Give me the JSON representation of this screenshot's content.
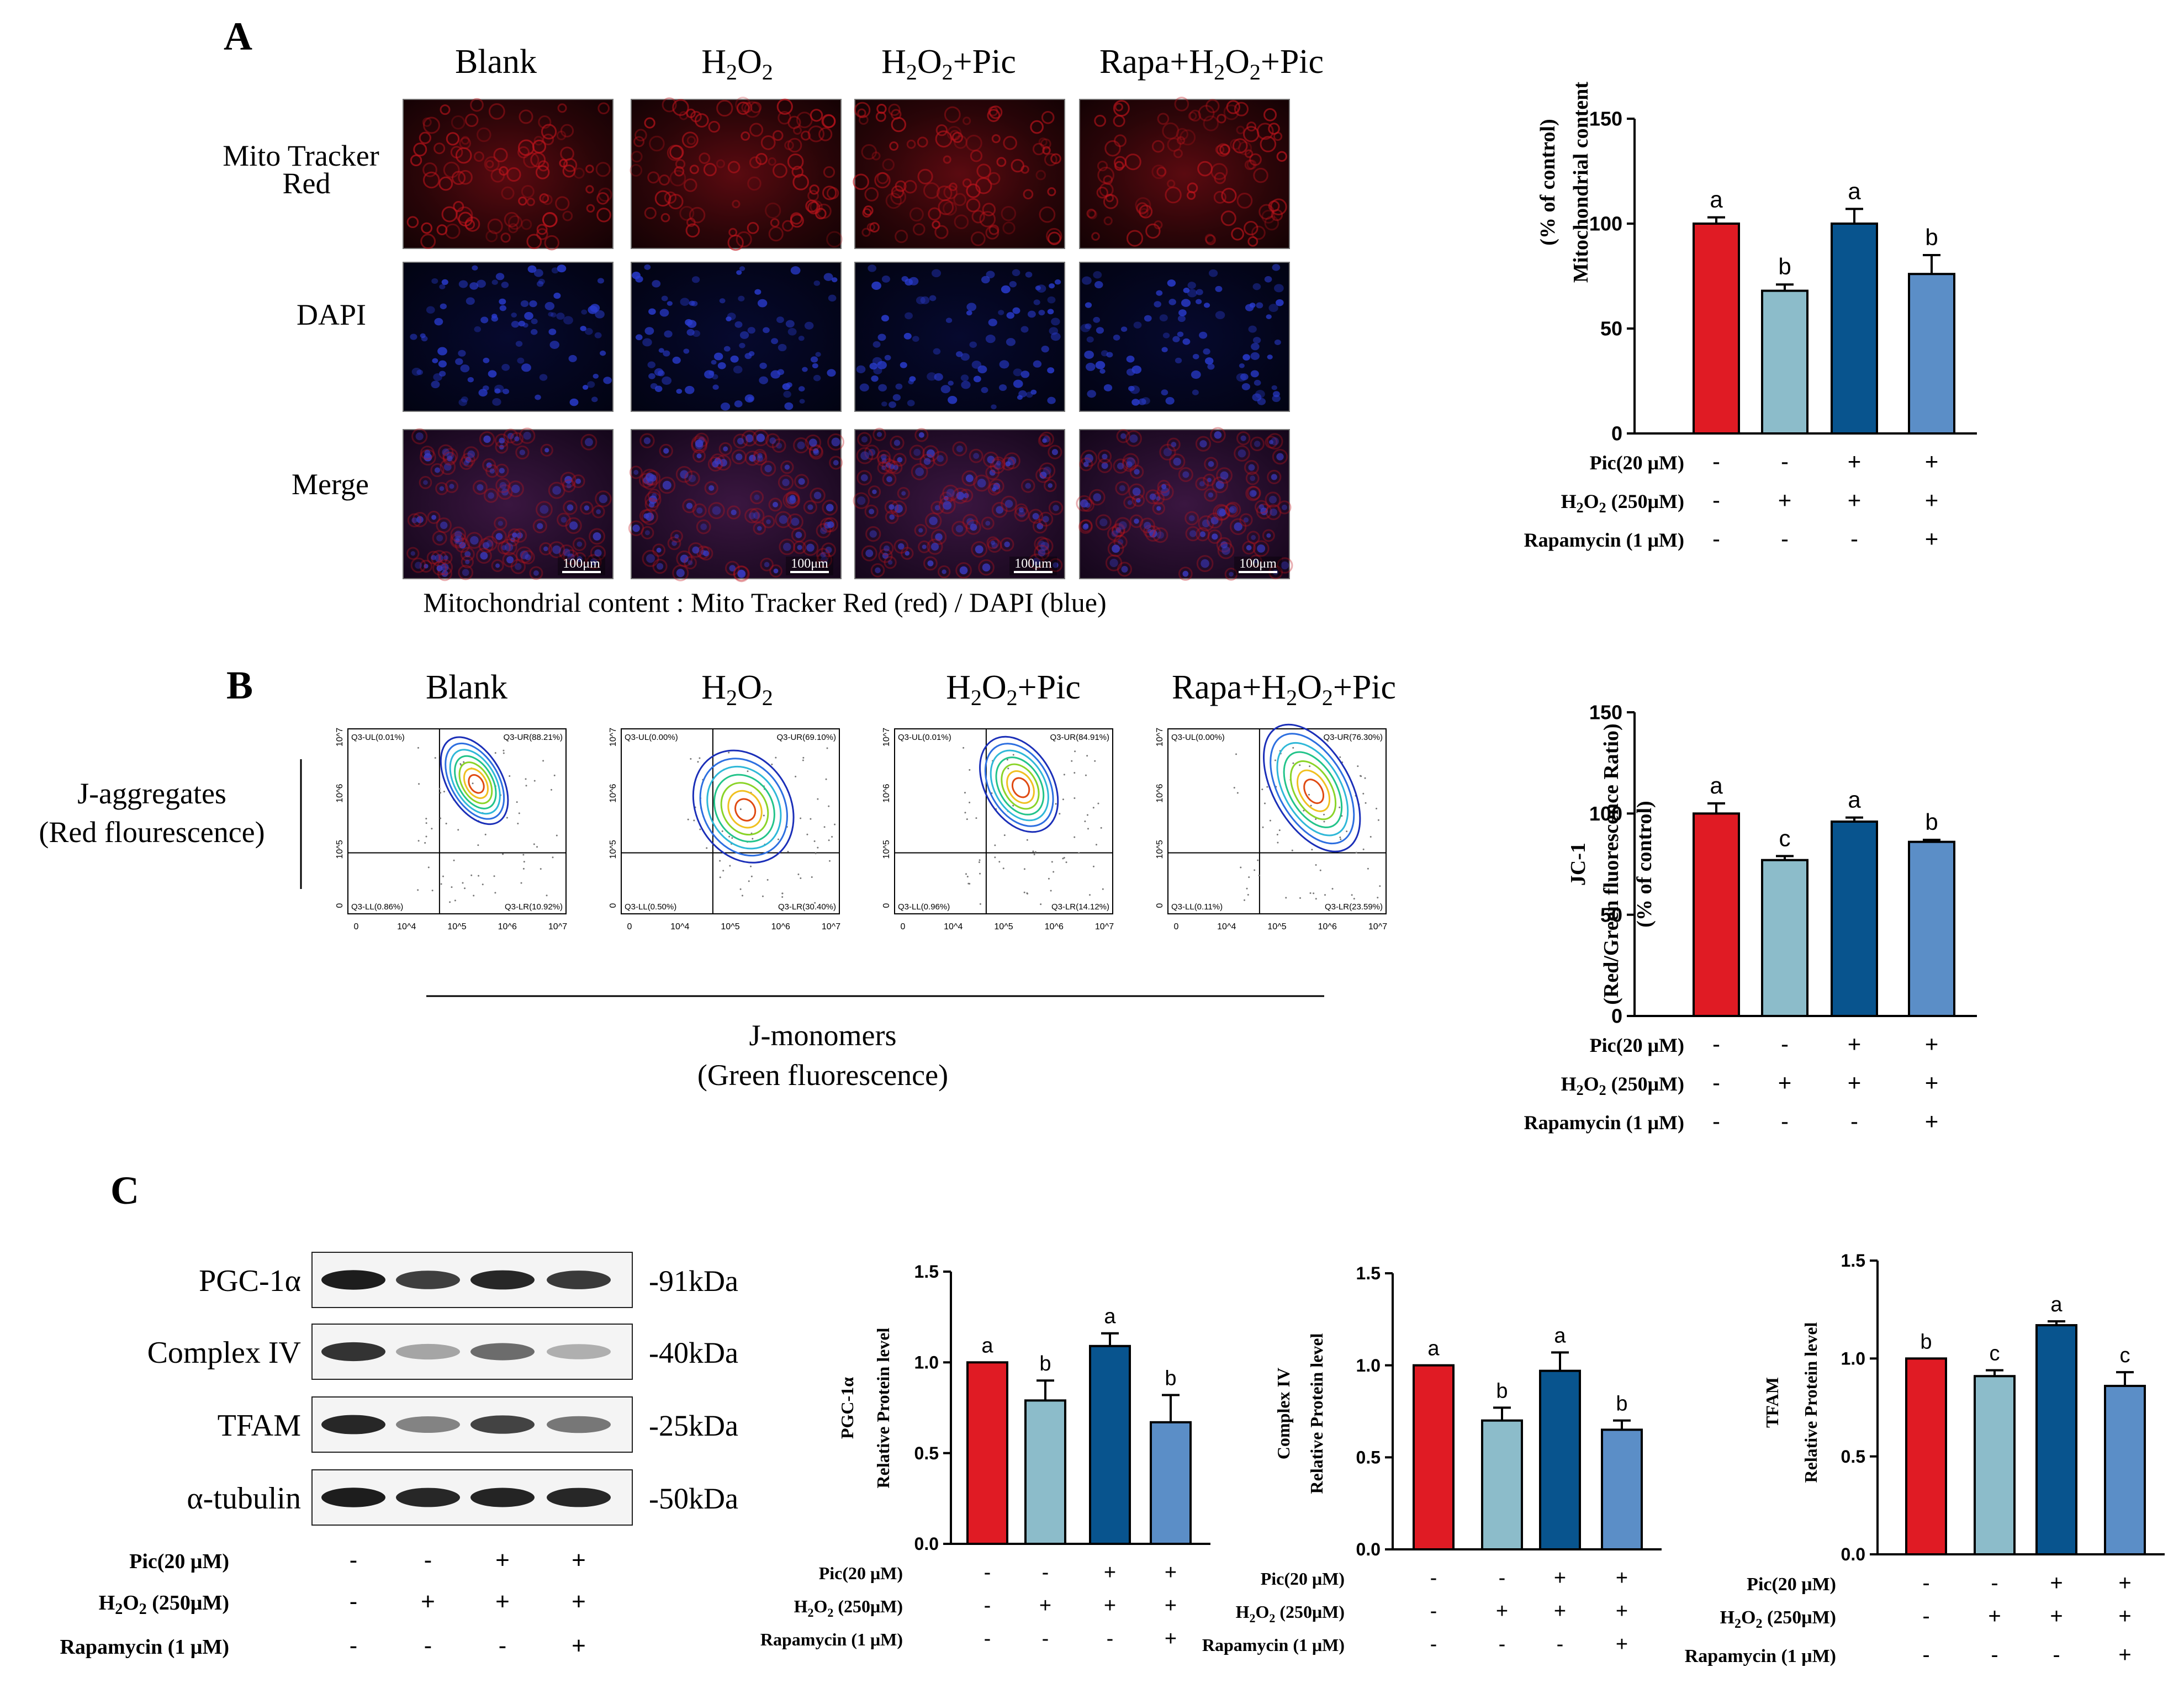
{
  "panelA": {
    "letter": "A",
    "columns": [
      "Blank",
      "H2O2",
      "H2O2+Pic",
      "Rapa+H2O2+Pic"
    ],
    "rows": [
      {
        "label": "Mito Tracker Red",
        "lines": [
          "Mito Tracker",
          "Red"
        ]
      },
      {
        "label": "DAPI",
        "lines": [
          "DAPI"
        ]
      },
      {
        "label": "Merge",
        "lines": [
          "Merge"
        ]
      }
    ],
    "scalebar": "100μm",
    "caption": "Mitochondrial content : Mito Tracker Red (red) / DAPI (blue)"
  },
  "panelB": {
    "letter": "B",
    "columns": [
      "Blank",
      "H2O2",
      "H2O2+Pic",
      "Rapa+H2O2+Pic"
    ],
    "ylabel_lines": [
      "J-aggregates",
      "(Red flourescence)"
    ],
    "xlabel_lines": [
      "J-monomers",
      "(Green fluorescence)"
    ],
    "flow_plots": [
      {
        "ul": "Q3-UL(0.01%)",
        "ur": "Q3-UR(88.21%)",
        "ll": "Q3-LL(0.86%)",
        "lr": "Q3-LR(10.92%)"
      },
      {
        "ul": "Q3-UL(0.00%)",
        "ur": "Q3-UR(69.10%)",
        "ll": "Q3-LL(0.50%)",
        "lr": "Q3-LR(30.40%)"
      },
      {
        "ul": "Q3-UL(0.01%)",
        "ur": "Q3-UR(84.91%)",
        "ll": "Q3-LL(0.96%)",
        "lr": "Q3-LR(14.12%)"
      },
      {
        "ul": "Q3-UL(0.00%)",
        "ur": "Q3-UR(76.30%)",
        "ll": "Q3-LL(0.11%)",
        "lr": "Q3-LR(23.59%)"
      }
    ],
    "x_ticks": [
      "0",
      "10^4",
      "10^5",
      "10^6",
      "10^7"
    ],
    "y_ticks": [
      "0",
      "10^5",
      "10^6",
      "10^7"
    ]
  },
  "panelC": {
    "letter": "C",
    "bands": [
      {
        "name": "PGC-1α",
        "size": "-91kDa"
      },
      {
        "name": "Complex IV",
        "size": "-40kDa"
      },
      {
        "name": "TFAM",
        "size": "-25kDa"
      },
      {
        "name": "α-tubulin",
        "size": "-50kDa"
      }
    ]
  },
  "treatments": {
    "labels": [
      "Pic(20 μM)",
      "H2O2 (250μM)",
      "Rapamycin (1 μM)"
    ],
    "signs": [
      [
        "-",
        "-",
        "+",
        "+"
      ],
      [
        "-",
        "+",
        "+",
        "+"
      ],
      [
        "-",
        "-",
        "-",
        "+"
      ]
    ]
  },
  "colors": {
    "bar1": "#e01b24",
    "bar2": "#8cbcca",
    "bar3": "#08548e",
    "bar4": "#5b8ec7",
    "mito_red": "#c0141c",
    "dapi_blue": "#2a3cd0"
  },
  "chart_data": [
    {
      "id": "mito",
      "type": "bar",
      "categories": [
        "Blank",
        "H2O2",
        "H2O2+Pic",
        "Rapa+H2O2+Pic"
      ],
      "values": [
        100,
        68,
        100,
        76
      ],
      "errors": [
        3,
        3,
        7,
        9
      ],
      "letters": [
        "a",
        "b",
        "a",
        "b"
      ],
      "ylabel_lines": [
        "Mitochondrial content",
        "(% of control)"
      ],
      "ylim": [
        0,
        150
      ],
      "yticks": [
        0,
        50,
        100,
        150
      ],
      "ytick_labels": [
        "0",
        "50",
        "100",
        "150"
      ]
    },
    {
      "id": "jc1",
      "type": "bar",
      "categories": [
        "Blank",
        "H2O2",
        "H2O2+Pic",
        "Rapa+H2O2+Pic"
      ],
      "values": [
        100,
        77,
        96,
        86
      ],
      "errors": [
        5,
        2,
        2,
        1
      ],
      "letters": [
        "a",
        "c",
        "a",
        "b"
      ],
      "ylabel_lines": [
        "JC-1",
        "(Red/Green fluorescence Ratio)",
        "(% of control)"
      ],
      "ylim": [
        0,
        150
      ],
      "yticks": [
        0,
        50,
        100,
        150
      ],
      "ytick_labels": [
        "0",
        "50",
        "100",
        "150"
      ]
    },
    {
      "id": "pgc",
      "type": "bar",
      "categories": [
        "Blank",
        "H2O2",
        "H2O2+Pic",
        "Rapa+H2O2+Pic"
      ],
      "values": [
        1.0,
        0.79,
        1.09,
        0.67
      ],
      "errors": [
        0,
        0.11,
        0.07,
        0.15
      ],
      "letters": [
        "a",
        "b",
        "a",
        "b"
      ],
      "ylabel_lines": [
        "PGC-1α",
        "Relative Protein level"
      ],
      "ylim": [
        0,
        1.5
      ],
      "yticks": [
        0,
        0.5,
        1.0,
        1.5
      ],
      "ytick_labels": [
        "0.0",
        "0.5",
        "1.0",
        "1.5"
      ]
    },
    {
      "id": "complex",
      "type": "bar",
      "categories": [
        "Blank",
        "H2O2",
        "H2O2+Pic",
        "Rapa+H2O2+Pic"
      ],
      "values": [
        1.0,
        0.7,
        0.97,
        0.65
      ],
      "errors": [
        0,
        0.07,
        0.1,
        0.05
      ],
      "letters": [
        "a",
        "b",
        "a",
        "b"
      ],
      "ylabel_lines": [
        "Complex IV",
        "Relative Protein level"
      ],
      "ylim": [
        0,
        1.5
      ],
      "yticks": [
        0,
        0.5,
        1.0,
        1.5
      ],
      "ytick_labels": [
        "0.0",
        "0.5",
        "1.0",
        "1.5"
      ]
    },
    {
      "id": "tfam",
      "type": "bar",
      "categories": [
        "Blank",
        "H2O2",
        "H2O2+Pic",
        "Rapa+H2O2+Pic"
      ],
      "values": [
        1.0,
        0.91,
        1.17,
        0.86
      ],
      "errors": [
        0,
        0.03,
        0.02,
        0.07
      ],
      "letters": [
        "b",
        "c",
        "a",
        "c"
      ],
      "ylabel_lines": [
        "TFAM",
        "Relative Protein level"
      ],
      "ylim": [
        0,
        1.5
      ],
      "yticks": [
        0,
        0.5,
        1.0,
        1.5
      ],
      "ytick_labels": [
        "0.0",
        "0.5",
        "1.0",
        "1.5"
      ]
    }
  ]
}
